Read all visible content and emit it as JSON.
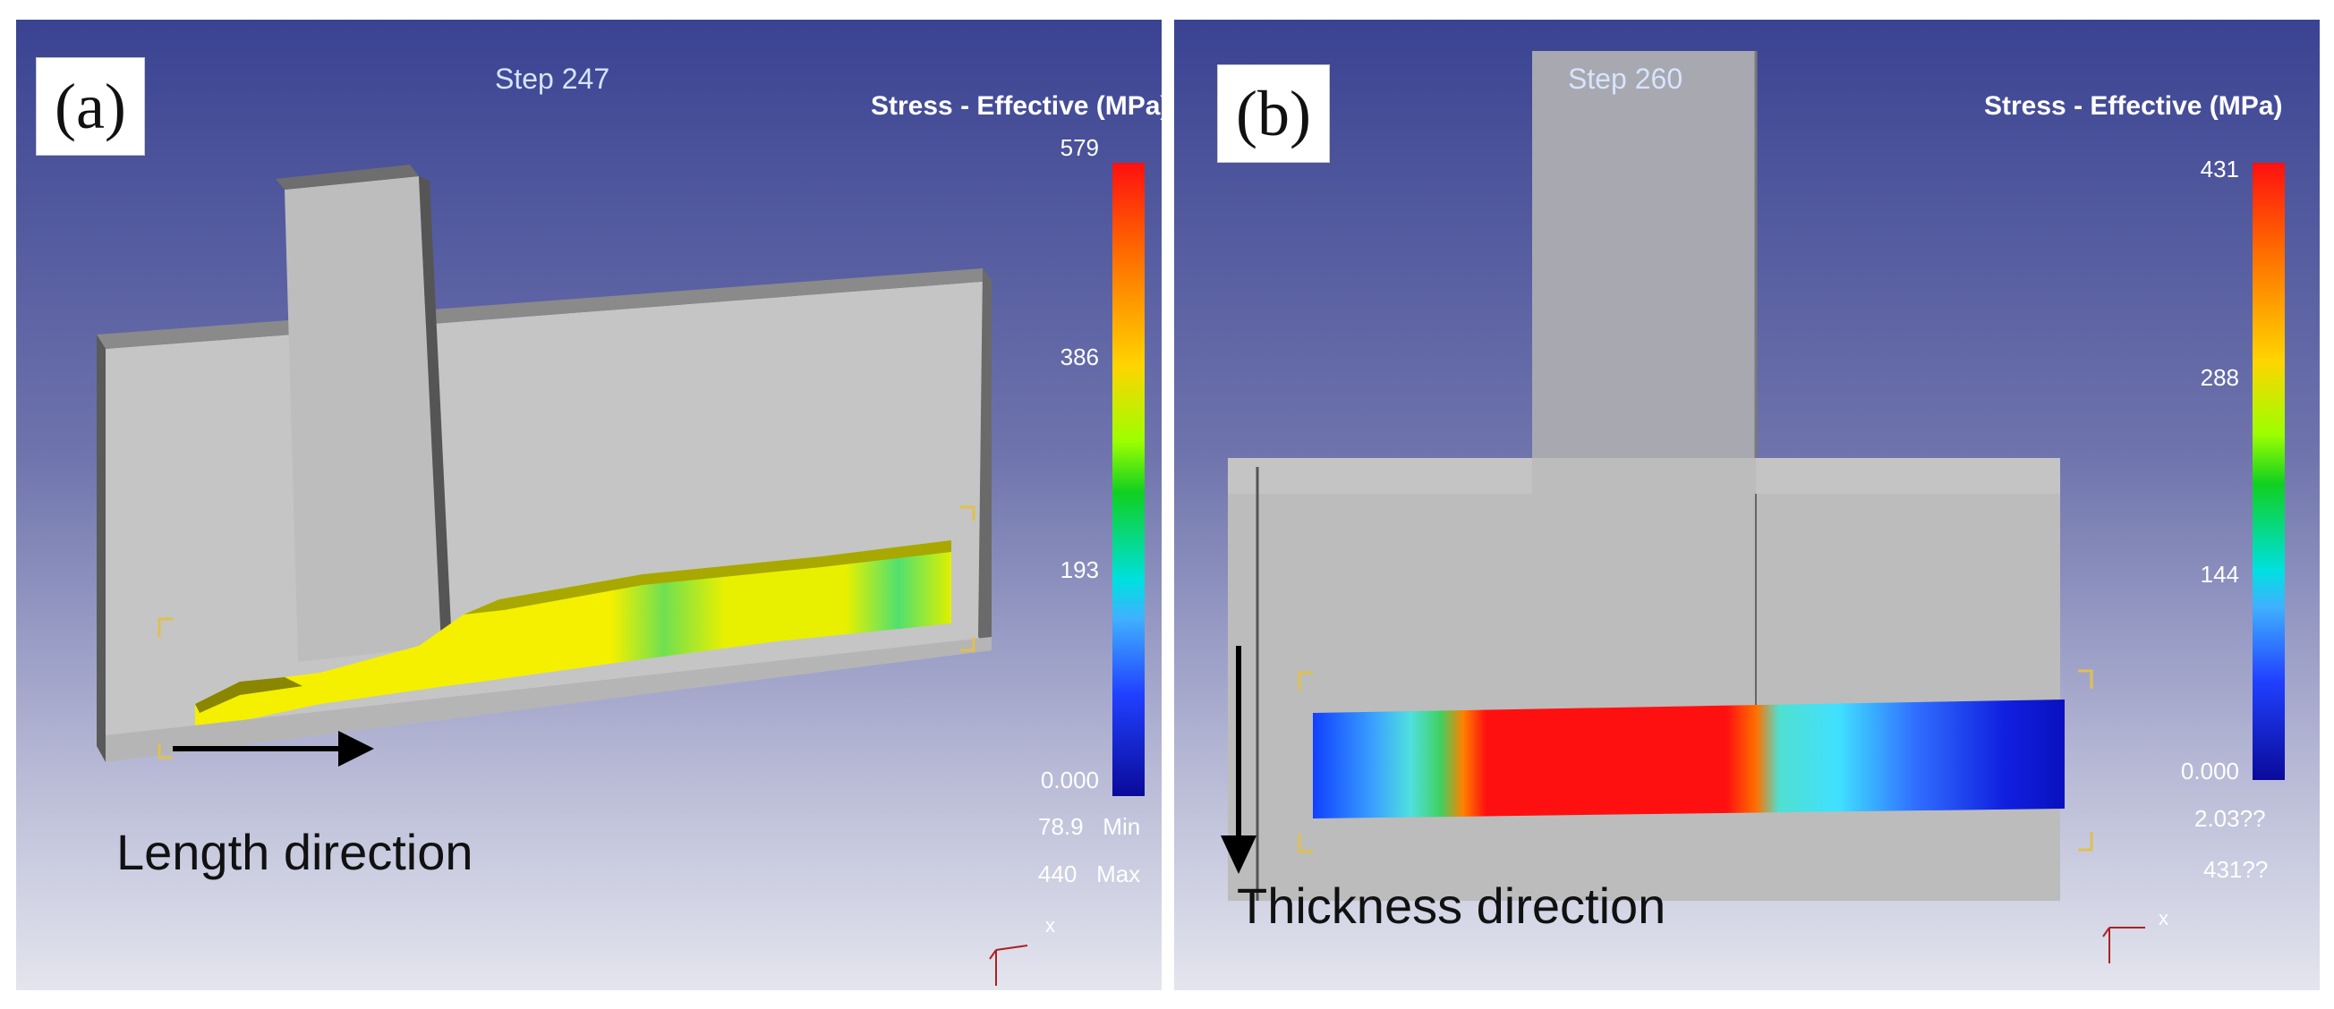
{
  "panel_a": {
    "label": "(a)",
    "step": "Step  247",
    "legend_title": "Stress - Effective (MPa)",
    "ticks": [
      "579",
      "386",
      "193",
      "0.000"
    ],
    "min_value": "78.9",
    "min_label": "Min",
    "max_value": "440",
    "max_label": "Max",
    "direction_label": "Length direction",
    "axis_label": "x"
  },
  "panel_b": {
    "label": "(b)",
    "step": "Step  260",
    "legend_title": "Stress - Effective (MPa)",
    "ticks": [
      "431",
      "288",
      "144",
      "0.000"
    ],
    "min_value": "2.03??",
    "max_value": "431??",
    "direction_label": "Thickness direction",
    "axis_label": "x"
  },
  "colors": {
    "background_top": "#3a4392",
    "part_gray": "#c6c6c6",
    "high_stress": "#ff1010",
    "mid_stress": "#ffff00",
    "low_stress": "#0a0a9a"
  }
}
